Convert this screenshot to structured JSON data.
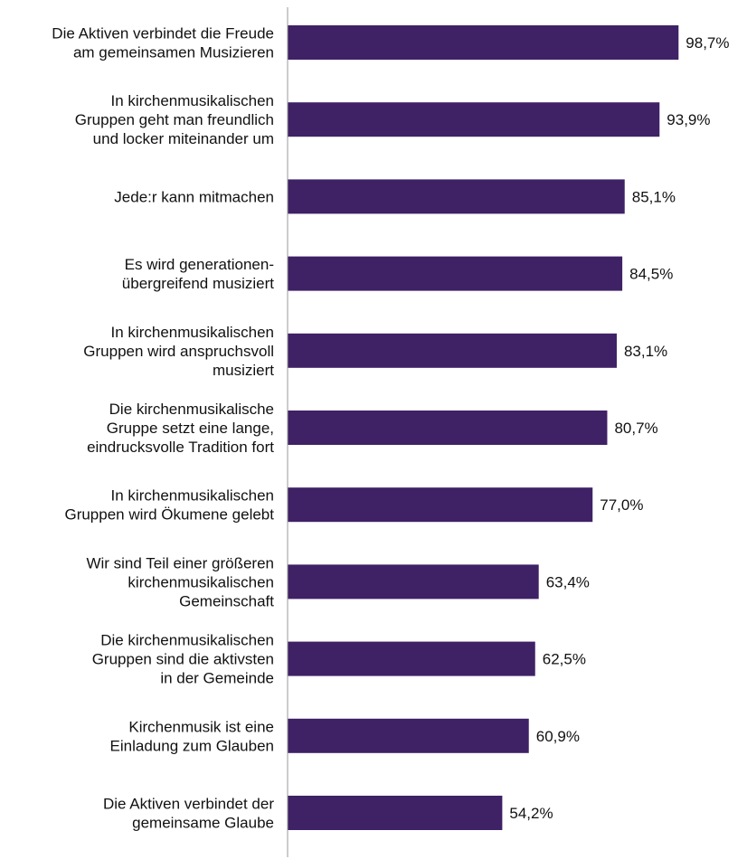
{
  "chart_data": {
    "type": "bar",
    "orientation": "horizontal",
    "categories": [
      "Die Aktiven verbindet die Freude\nam gemeinsamen Musizieren",
      "In kirchenmusikalischen\nGruppen geht man freundlich\nund locker miteinander um",
      "Jede:r kann mitmachen",
      "Es wird generationen-\nübergreifend musiziert",
      "In kirchenmusikalischen\nGruppen wird anspruchsvoll\nmusiziert",
      "Die kirchenmusikalische\nGruppe setzt eine lange,\neindrucksvolle Tradition fort",
      "In kirchenmusikalischen\nGruppen wird Ökumene gelebt",
      "Wir sind Teil einer größeren\nkirchenmusikalischen\nGemeinschaft",
      "Die kirchenmusikalischen\nGruppen sind die aktivsten\nin der Gemeinde",
      "Kirchenmusik ist eine\nEinladung zum Glauben",
      "Die Aktiven verbindet der\ngemeinsame Glaube"
    ],
    "values": [
      98.7,
      93.9,
      85.1,
      84.5,
      83.1,
      80.7,
      77.0,
      63.4,
      62.5,
      60.9,
      54.2
    ],
    "value_labels": [
      "98,7%",
      "93,9%",
      "85,1%",
      "84,5%",
      "83,1%",
      "80,7%",
      "77,0%",
      "63,4%",
      "62,5%",
      "60,9%",
      "54,2%"
    ],
    "xlim": [
      0,
      100
    ],
    "bar_color": "#3f2166",
    "axis_color": "#999999",
    "grid": false,
    "legend": "none"
  }
}
